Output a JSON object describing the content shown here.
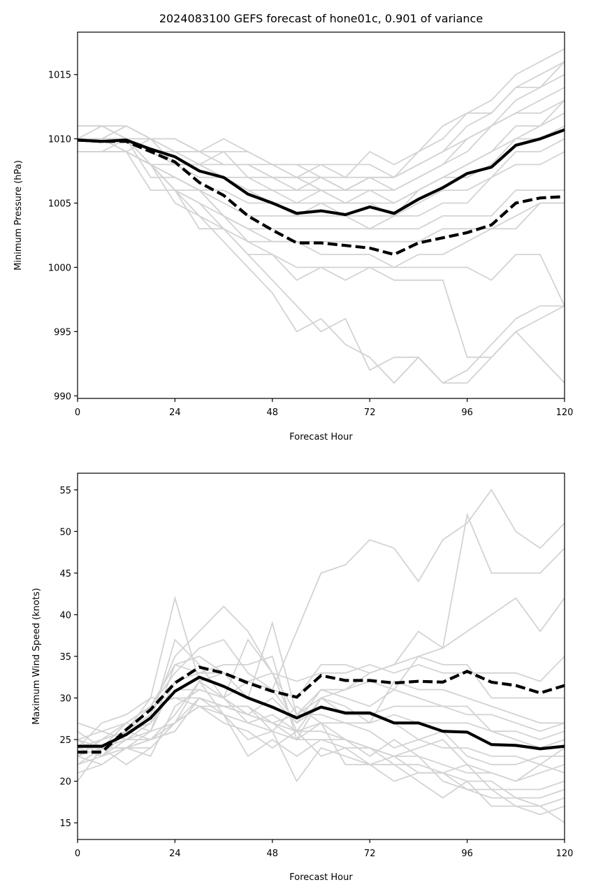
{
  "chart_data": [
    {
      "type": "line",
      "title": "2024083100 GEFS forecast of hone01c, 0.901 of variance",
      "xlabel": "Forecast Hour",
      "ylabel": "Minimum Pressure (hPa)",
      "xlim": [
        0,
        120
      ],
      "ylim": [
        989.8,
        1018.3
      ],
      "xticks": [
        0,
        24,
        48,
        72,
        96,
        120
      ],
      "yticks": [
        990,
        995,
        1000,
        1005,
        1010,
        1015
      ],
      "x": [
        0,
        6,
        12,
        18,
        24,
        30,
        36,
        42,
        48,
        54,
        60,
        66,
        72,
        78,
        84,
        90,
        96,
        102,
        108,
        114,
        120
      ],
      "series_mean": [
        1009.9,
        1009.8,
        1009.9,
        1009.2,
        1008.6,
        1007.5,
        1007.0,
        1005.7,
        1005.0,
        1004.2,
        1004.4,
        1004.1,
        1004.7,
        1004.2,
        1005.3,
        1006.2,
        1007.3,
        1007.8,
        1009.5,
        1010.0,
        1010.7
      ],
      "series_dashed": [
        1009.9,
        1009.8,
        1009.8,
        1009.0,
        1008.2,
        1006.6,
        1005.6,
        1004.0,
        1002.9,
        1001.9,
        1001.9,
        1001.7,
        1001.5,
        1001.0,
        1001.9,
        1002.3,
        1002.7,
        1003.3,
        1005.0,
        1005.4,
        1005.5
      ],
      "members": [
        [
          1011,
          1011,
          1011,
          1010,
          1010,
          1009,
          1009,
          1009,
          1008,
          1008,
          1008,
          1008,
          1008,
          1007,
          1009,
          1010,
          1012,
          1013,
          1015,
          1016,
          1017
        ],
        [
          1011,
          1011,
          1010,
          1010,
          1009,
          1009,
          1010,
          1009,
          1008,
          1008,
          1007,
          1007,
          1007,
          1007,
          1008,
          1009,
          1011,
          1012,
          1014,
          1015,
          1016
        ],
        [
          1010,
          1010,
          1011,
          1010,
          1010,
          1009,
          1008,
          1008,
          1008,
          1007,
          1008,
          1007,
          1009,
          1008,
          1009,
          1011,
          1012,
          1012,
          1014,
          1014,
          1016
        ],
        [
          1010,
          1010,
          1010,
          1010,
          1009,
          1008,
          1008,
          1008,
          1007,
          1007,
          1007,
          1006,
          1007,
          1007,
          1008,
          1009,
          1010,
          1011,
          1013,
          1014,
          1015
        ],
        [
          1010,
          1011,
          1010,
          1009,
          1009,
          1009,
          1008,
          1008,
          1007,
          1007,
          1006,
          1006,
          1007,
          1006,
          1007,
          1008,
          1010,
          1011,
          1012,
          1013,
          1014
        ],
        [
          1010,
          1010,
          1010,
          1009,
          1009,
          1008,
          1009,
          1007,
          1007,
          1006,
          1007,
          1006,
          1006,
          1006,
          1007,
          1008,
          1009,
          1011,
          1012,
          1012,
          1013
        ],
        [
          1009,
          1009,
          1009,
          1010,
          1008,
          1008,
          1007,
          1007,
          1006,
          1006,
          1006,
          1005,
          1006,
          1005,
          1006,
          1007,
          1008,
          1009,
          1011,
          1011,
          1013
        ],
        [
          1009,
          1009,
          1010,
          1009,
          1008,
          1008,
          1007,
          1006,
          1006,
          1005,
          1005,
          1005,
          1005,
          1005,
          1006,
          1007,
          1008,
          1009,
          1010,
          1011,
          1012
        ],
        [
          1010,
          1010,
          1010,
          1008,
          1008,
          1007,
          1007,
          1006,
          1005,
          1005,
          1006,
          1005,
          1005,
          1004,
          1006,
          1007,
          1007,
          1008,
          1010,
          1010,
          1011
        ],
        [
          1010,
          1010,
          1009,
          1008,
          1007,
          1006,
          1006,
          1005,
          1005,
          1004,
          1005,
          1004,
          1004,
          1004,
          1005,
          1006,
          1006,
          1007,
          1009,
          1009,
          1010
        ],
        [
          1010,
          1010,
          1010,
          1007,
          1007,
          1006,
          1005,
          1004,
          1004,
          1004,
          1004,
          1004,
          1003,
          1004,
          1004,
          1005,
          1005,
          1007,
          1008,
          1008,
          1009
        ],
        [
          1009,
          1009,
          1009,
          1006,
          1006,
          1006,
          1004,
          1003,
          1003,
          1003,
          1003,
          1003,
          1003,
          1003,
          1003,
          1004,
          1004,
          1004,
          1006,
          1006,
          1006
        ],
        [
          1009,
          1009,
          1009,
          1008,
          1006,
          1005,
          1004,
          1002,
          1002,
          1002,
          1002,
          1002,
          1002,
          1002,
          1002,
          1003,
          1003,
          1003,
          1003,
          1005,
          1005
        ],
        [
          1010,
          1010,
          1010,
          1008,
          1007,
          1006,
          1004,
          1003,
          1002,
          1002,
          1001,
          1001,
          1001,
          1000,
          1001,
          1001,
          1002,
          1003,
          1004,
          1005,
          1005
        ],
        [
          1010,
          1010,
          1009,
          1008,
          1006,
          1005,
          1003,
          1002,
          1001,
          1000,
          1000,
          1000,
          1000,
          1000,
          1000,
          1000,
          1000,
          999,
          1001,
          1001,
          997
        ],
        [
          1010,
          1010,
          1009,
          1008,
          1006,
          1003,
          1003,
          1001,
          1001,
          999,
          1000,
          999,
          1000,
          999,
          999,
          999,
          993,
          993,
          995,
          996,
          997
        ],
        [
          1010,
          1010,
          1009,
          1008,
          1005,
          1004,
          1003,
          1001,
          999,
          997,
          995,
          996,
          992,
          993,
          993,
          991,
          992,
          994,
          996,
          997,
          997
        ],
        [
          1010,
          1010,
          1009,
          1008,
          1006,
          1004,
          1002,
          1000,
          998,
          995,
          996,
          994,
          993,
          991,
          993,
          991,
          991,
          993,
          995,
          993,
          991
        ]
      ]
    },
    {
      "type": "line",
      "title": "",
      "xlabel": "Forecast Hour",
      "ylabel": "Maximum Wind Speed (knots)",
      "xlim": [
        0,
        120
      ],
      "ylim": [
        13,
        57
      ],
      "xticks": [
        0,
        24,
        48,
        72,
        96,
        120
      ],
      "yticks": [
        15,
        20,
        25,
        30,
        35,
        40,
        45,
        50,
        55
      ],
      "x": [
        0,
        6,
        12,
        18,
        24,
        30,
        36,
        42,
        48,
        54,
        60,
        66,
        72,
        78,
        84,
        90,
        96,
        102,
        108,
        114,
        120
      ],
      "series_mean": [
        24.2,
        24.2,
        25.6,
        27.6,
        30.8,
        32.5,
        31.4,
        30.0,
        28.9,
        27.6,
        28.9,
        28.2,
        28.2,
        27.0,
        27.0,
        26.0,
        25.9,
        24.4,
        24.3,
        23.9,
        24.2
      ],
      "series_dashed": [
        23.5,
        23.5,
        26.2,
        28.6,
        31.8,
        33.7,
        33.0,
        31.8,
        30.8,
        30.1,
        32.7,
        32.1,
        32.1,
        31.8,
        32.0,
        31.9,
        33.2,
        31.9,
        31.5,
        30.6,
        31.5
      ],
      "members": [
        [
          24,
          24,
          26,
          30,
          42,
          32,
          33,
          32,
          31,
          38,
          45,
          46,
          49,
          48,
          44,
          49,
          51,
          55,
          50,
          48,
          51
        ],
        [
          23,
          25,
          27,
          29,
          33,
          36,
          37,
          33,
          31,
          30,
          34,
          34,
          33,
          34,
          38,
          36,
          52,
          45,
          45,
          45,
          48
        ],
        [
          25,
          26,
          27,
          29,
          34,
          35,
          33,
          30,
          39,
          28,
          30,
          31,
          32,
          31,
          35,
          36,
          38,
          40,
          42,
          38,
          42
        ],
        [
          24,
          25,
          26,
          28,
          35,
          38,
          41,
          38,
          33,
          32,
          33,
          33,
          34,
          33,
          34,
          33,
          33,
          33,
          33,
          32,
          35
        ],
        [
          22,
          24,
          26,
          27,
          37,
          34,
          30,
          37,
          33,
          28,
          31,
          31,
          33,
          34,
          35,
          34,
          34,
          30,
          30,
          30,
          30
        ],
        [
          24,
          24,
          25,
          26,
          34,
          33,
          34,
          34,
          35,
          25,
          30,
          29,
          27,
          32,
          31,
          31,
          30,
          29,
          28,
          27,
          27
        ],
        [
          26,
          24,
          24,
          26,
          32,
          33,
          33,
          32,
          33,
          26,
          30,
          28,
          28,
          29,
          29,
          29,
          28,
          28,
          27,
          26,
          27
        ],
        [
          27,
          26,
          25,
          27,
          31,
          31,
          30,
          32,
          31,
          27,
          31,
          30,
          29,
          31,
          30,
          29,
          29,
          26,
          26,
          25,
          26
        ],
        [
          24,
          27,
          28,
          30,
          30,
          30,
          29,
          28,
          27,
          28,
          28,
          27,
          27,
          28,
          27,
          27,
          27,
          26,
          25,
          24,
          25
        ],
        [
          23,
          25,
          26,
          29,
          30,
          29,
          29,
          28,
          30,
          27,
          29,
          28,
          28,
          27,
          25,
          24,
          24,
          23,
          23,
          22,
          24
        ],
        [
          22,
          23,
          26,
          25,
          28,
          32,
          30,
          27,
          26,
          29,
          27,
          27,
          26,
          24,
          25,
          26,
          23,
          22,
          22,
          23,
          23
        ],
        [
          25,
          24,
          24,
          23,
          29,
          31,
          30,
          28,
          27,
          26,
          26,
          25,
          24,
          23,
          24,
          25,
          22,
          21,
          20,
          21,
          22
        ],
        [
          21,
          22,
          24,
          24,
          27,
          30,
          29,
          29,
          27,
          25,
          27,
          25,
          23,
          25,
          23,
          22,
          21,
          21,
          20,
          22,
          21
        ],
        [
          24,
          23,
          24,
          25,
          26,
          30,
          29,
          29,
          26,
          25,
          25,
          25,
          24,
          22,
          22,
          21,
          22,
          19,
          19,
          19,
          20
        ],
        [
          23,
          24,
          22,
          24,
          27,
          29,
          28,
          23,
          25,
          23,
          25,
          24,
          22,
          20,
          21,
          21,
          20,
          20,
          18,
          18,
          19
        ],
        [
          25,
          23,
          25,
          25,
          27,
          29,
          27,
          26,
          24,
          26,
          23,
          24,
          24,
          23,
          23,
          20,
          19,
          18,
          18,
          17,
          18
        ],
        [
          20,
          24,
          27,
          26,
          27,
          32,
          28,
          25,
          26,
          20,
          24,
          23,
          22,
          22,
          20,
          18,
          20,
          17,
          17,
          16,
          17
        ],
        [
          23,
          22,
          24,
          25,
          26,
          30,
          28,
          27,
          28,
          26,
          27,
          22,
          22,
          23,
          21,
          21,
          19,
          19,
          17,
          17,
          15
        ]
      ]
    }
  ]
}
